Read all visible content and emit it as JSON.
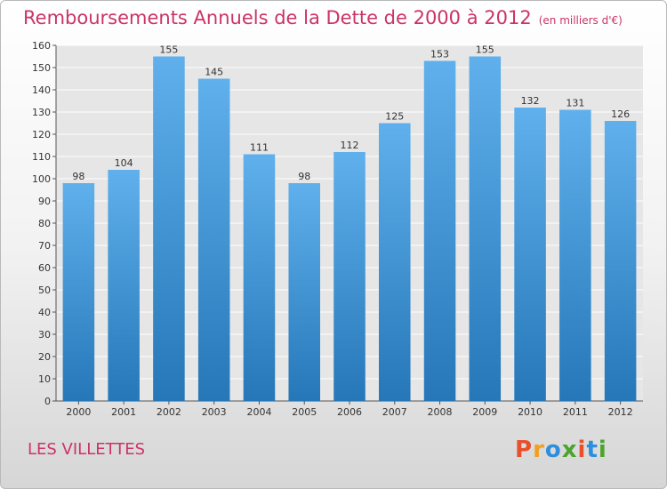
{
  "header": {
    "title": "Remboursements Annuels de la Dette de 2000 à 2012",
    "unit": "(en milliers d'€)"
  },
  "footer": {
    "commune": "LES VILLETTES",
    "logo": "Proxiti"
  },
  "colors": {
    "title": "#cc3366",
    "bar_top": "#5fb0ec",
    "bar_bottom": "#2677b8",
    "logo_letters": [
      "#e8502c",
      "#f0a020",
      "#2e8ede",
      "#4aa52e",
      "#e8502c",
      "#2e8ede",
      "#4aa52e"
    ]
  },
  "chart_data": {
    "type": "bar",
    "categories": [
      "2000",
      "2001",
      "2002",
      "2003",
      "2004",
      "2005",
      "2006",
      "2007",
      "2008",
      "2009",
      "2010",
      "2011",
      "2012"
    ],
    "values": [
      98,
      104,
      155,
      145,
      111,
      98,
      112,
      125,
      153,
      155,
      132,
      131,
      126
    ],
    "ylim": [
      0,
      160
    ],
    "yticks": [
      0,
      10,
      20,
      30,
      40,
      50,
      60,
      70,
      80,
      90,
      100,
      110,
      120,
      130,
      140,
      150,
      160
    ],
    "grid": true,
    "legend": "none"
  }
}
